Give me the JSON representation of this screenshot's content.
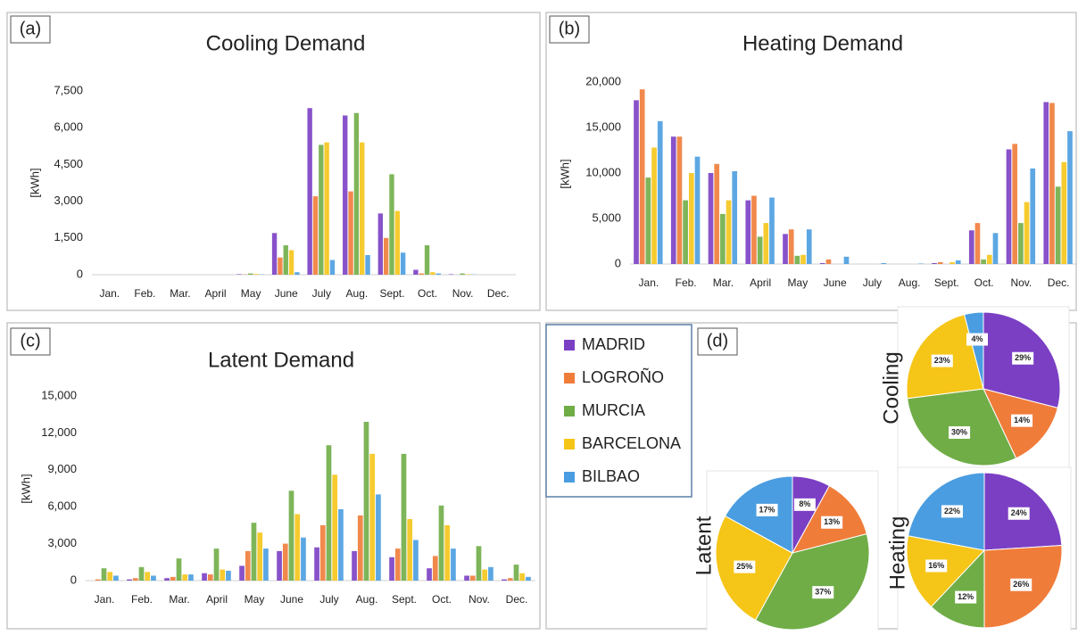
{
  "chart_data": [
    {
      "type": "bar",
      "panel": "(a)",
      "title": "Cooling Demand",
      "ylabel": "[kWh]",
      "categories": [
        "Jan.",
        "Feb.",
        "Mar.",
        "April",
        "May",
        "June",
        "July",
        "Aug.",
        "Sept.",
        "Oct.",
        "Nov.",
        "Dec."
      ],
      "series": [
        {
          "name": "MADRID",
          "color": "#7b3fc4",
          "values": [
            0,
            0,
            0,
            0,
            20,
            1700,
            6800,
            6500,
            2500,
            200,
            20,
            0
          ]
        },
        {
          "name": "LOGROÑO",
          "color": "#f07c3a",
          "values": [
            0,
            0,
            0,
            0,
            10,
            700,
            3200,
            3400,
            1500,
            50,
            0,
            0
          ]
        },
        {
          "name": "MURCIA",
          "color": "#70ad47",
          "values": [
            0,
            0,
            0,
            0,
            50,
            1200,
            5300,
            6600,
            4100,
            1200,
            50,
            0
          ]
        },
        {
          "name": "BARCELONA",
          "color": "#f5c518",
          "values": [
            0,
            0,
            0,
            0,
            30,
            1000,
            5400,
            5400,
            2600,
            100,
            20,
            0
          ]
        },
        {
          "name": "BILBAO",
          "color": "#4a9de0",
          "values": [
            0,
            0,
            0,
            0,
            10,
            100,
            600,
            800,
            900,
            50,
            10,
            0
          ]
        }
      ],
      "ylim": [
        0,
        7500
      ],
      "yticks": [
        0,
        {
          "value": 1500,
          "label": "1,500"
        },
        {
          "value": 3000,
          "label": "3,000"
        },
        {
          "value": 4500,
          "label": "4,500"
        },
        {
          "value": 6000,
          "label": "6,000"
        },
        {
          "value": 7500,
          "label": "7,500"
        }
      ]
    },
    {
      "type": "bar",
      "panel": "(b)",
      "title": "Heating Demand",
      "ylabel": "[kWh]",
      "categories": [
        "Jan.",
        "Feb.",
        "Mar.",
        "April",
        "May",
        "June",
        "July",
        "Aug.",
        "Sept.",
        "Oct.",
        "Nov.",
        "Dec."
      ],
      "series": [
        {
          "color": "#7b3fc4",
          "values": [
            18000,
            14000,
            10000,
            7000,
            3300,
            100,
            0,
            0,
            100,
            3700,
            12600,
            17800
          ]
        },
        {
          "color": "#f07c3a",
          "values": [
            19200,
            14000,
            11000,
            7500,
            3800,
            500,
            0,
            0,
            200,
            4500,
            13200,
            17700
          ]
        },
        {
          "color": "#70ad47",
          "values": [
            9500,
            7000,
            5500,
            3000,
            900,
            0,
            0,
            0,
            0,
            500,
            4500,
            8500
          ]
        },
        {
          "color": "#f5c518",
          "values": [
            12800,
            10000,
            7000,
            4500,
            1000,
            0,
            0,
            0,
            200,
            1000,
            6800,
            11200
          ]
        },
        {
          "color": "#4a9de0",
          "values": [
            15700,
            11800,
            10200,
            7300,
            3800,
            800,
            100,
            50,
            400,
            3400,
            10500,
            14600
          ]
        }
      ],
      "ylim": [
        0,
        20000
      ],
      "yticks": [
        0,
        {
          "value": 5000,
          "label": "5,000"
        },
        {
          "value": 10000,
          "label": "10,000"
        },
        {
          "value": 15000,
          "label": "15,000"
        },
        {
          "value": 20000,
          "label": "20,000"
        }
      ]
    },
    {
      "type": "bar",
      "panel": "(c)",
      "title": "Latent Demand",
      "ylabel": "[kWh]",
      "categories": [
        "Jan.",
        "Feb.",
        "Mar.",
        "April",
        "May",
        "June",
        "July",
        "Aug.",
        "Sept.",
        "Oct.",
        "Nov.",
        "Dec."
      ],
      "series": [
        {
          "color": "#7b3fc4",
          "values": [
            0,
            100,
            200,
            600,
            1200,
            2400,
            2700,
            2400,
            1900,
            1000,
            400,
            100
          ]
        },
        {
          "color": "#f07c3a",
          "values": [
            100,
            200,
            300,
            500,
            2400,
            3000,
            4500,
            5300,
            2600,
            2000,
            400,
            200
          ]
        },
        {
          "color": "#70ad47",
          "values": [
            1000,
            1100,
            1800,
            2600,
            4700,
            7300,
            11000,
            12900,
            10300,
            6100,
            2800,
            1300
          ]
        },
        {
          "color": "#f5c518",
          "values": [
            700,
            700,
            500,
            900,
            3900,
            5400,
            8600,
            10300,
            5000,
            4500,
            900,
            600
          ]
        },
        {
          "color": "#4a9de0",
          "values": [
            400,
            400,
            500,
            800,
            2600,
            3500,
            5800,
            7000,
            3300,
            2600,
            1100,
            300
          ]
        }
      ],
      "ylim": [
        0,
        15000
      ],
      "yticks": [
        0,
        {
          "value": 3000,
          "label": "3,000"
        },
        {
          "value": 6000,
          "label": "6,000"
        },
        {
          "value": 9000,
          "label": "9,000"
        },
        {
          "value": 12000,
          "label": "12,000"
        },
        {
          "value": 15000,
          "label": "15,000"
        }
      ]
    },
    {
      "type": "pie",
      "panel": "(d)",
      "title": "Cooling",
      "values": [
        29,
        14,
        30,
        23,
        4
      ],
      "value_labels": [
        "29%",
        "14%",
        "30%",
        "23%",
        "4%"
      ],
      "colors": [
        "#7b3fc4",
        "#f07c3a",
        "#70ad47",
        "#f5c518",
        "#4a9de0"
      ]
    },
    {
      "type": "pie",
      "title": "Heating",
      "values": [
        24,
        26,
        12,
        16,
        22
      ],
      "value_labels": [
        "24%",
        "26%",
        "12%",
        "16%",
        "22%"
      ],
      "colors": [
        "#7b3fc4",
        "#f07c3a",
        "#70ad47",
        "#f5c518",
        "#4a9de0"
      ]
    },
    {
      "type": "pie",
      "title": "Latent",
      "values": [
        8,
        13,
        37,
        25,
        17
      ],
      "value_labels": [
        "8%",
        "13%",
        "37%",
        "25%",
        "17%"
      ],
      "colors": [
        "#7b3fc4",
        "#f07c3a",
        "#70ad47",
        "#f5c518",
        "#4a9de0"
      ]
    }
  ]
}
